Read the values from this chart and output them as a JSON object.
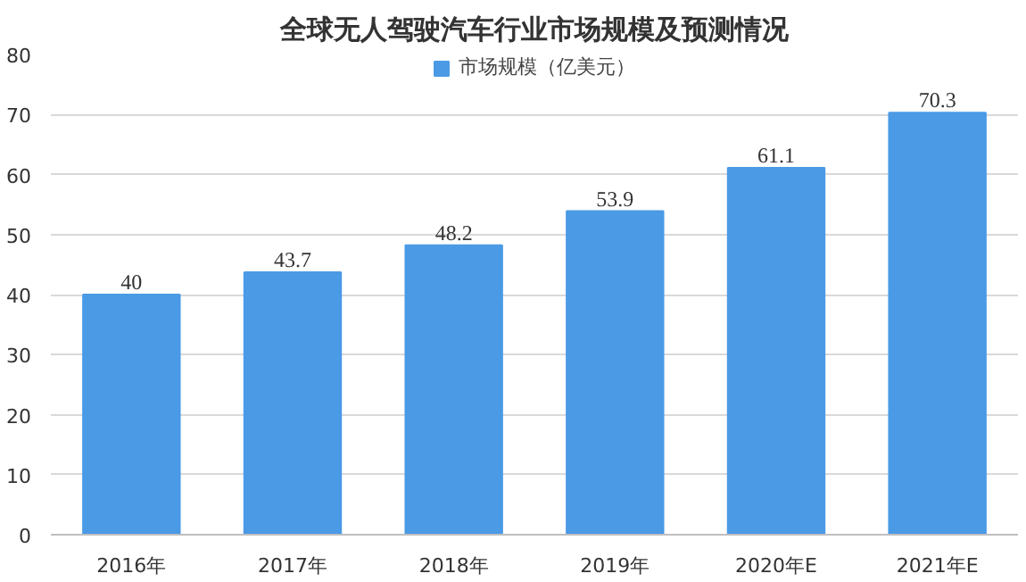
{
  "chart_data": {
    "type": "bar",
    "title": "全球无人驾驶汽车行业市场规模及预测情况",
    "categories": [
      "2016年",
      "2017年",
      "2018年",
      "2019年",
      "2020年E",
      "2021年E"
    ],
    "series": [
      {
        "name": "市场规模（亿美元）",
        "color": "#4a9ae6",
        "values": [
          40,
          43.7,
          48.2,
          53.9,
          61.1,
          70.3
        ]
      }
    ],
    "ylim": [
      0,
      80
    ],
    "yticks": [
      0,
      10,
      20,
      30,
      40,
      50,
      60,
      70,
      80
    ],
    "grid": "y",
    "legend": "top",
    "data_labels": true
  }
}
